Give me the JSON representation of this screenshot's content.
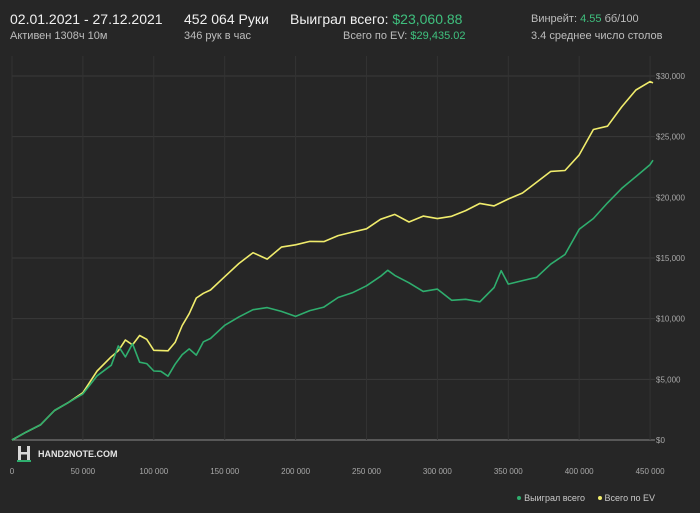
{
  "header": {
    "date_range": "02.01.2021 - 27.12.2021",
    "active_time": "Активен 1308ч 10м",
    "hands": "452 064 Руки",
    "hands_per_hour": "346 рук в час",
    "won_total_label": "Выиграл всего:",
    "won_total_value": "$23,060.88",
    "ev_total_label": "Всего по EV:",
    "ev_total_value": "$29,435.02",
    "winrate_label": "Винрейт:",
    "winrate_value": "4.55",
    "winrate_unit": "бб/100",
    "tables_avg": "3.4 среднее число столов"
  },
  "logo": {
    "text": "HAND2NOTE.COM"
  },
  "colors": {
    "won": "#2fae6e",
    "ev": "#f0ec6c",
    "bg": "#262626",
    "grid": "#3a3a3a"
  },
  "chart_data": {
    "type": "line",
    "xlim": [
      0,
      452064
    ],
    "ylim": [
      0,
      30000
    ],
    "x_ticks": [
      0,
      50000,
      100000,
      150000,
      200000,
      250000,
      300000,
      350000,
      400000,
      450000
    ],
    "x_tick_labels": [
      "0",
      "50 000",
      "100 000",
      "150 000",
      "200 000",
      "250 000",
      "300 000",
      "350 000",
      "400 000",
      "450 000"
    ],
    "y_ticks": [
      0,
      5000,
      10000,
      15000,
      20000,
      25000,
      30000
    ],
    "y_tick_labels": [
      "$0",
      "$5,000",
      "$10,000",
      "$15,000",
      "$20,000",
      "$25,000",
      "$30,000"
    ],
    "legend_position": "bottom-right",
    "series": [
      {
        "name": "Выиграл всего",
        "color": "#2fae6e",
        "x": [
          0,
          10000,
          20000,
          30000,
          40000,
          50000,
          60000,
          70000,
          75000,
          80000,
          85000,
          90000,
          95000,
          100000,
          105000,
          110000,
          115000,
          120000,
          125000,
          130000,
          135000,
          140000,
          150000,
          160000,
          170000,
          180000,
          190000,
          200000,
          210000,
          220000,
          230000,
          240000,
          250000,
          260000,
          265000,
          270000,
          280000,
          290000,
          300000,
          310000,
          320000,
          330000,
          340000,
          345000,
          350000,
          360000,
          370000,
          380000,
          390000,
          400000,
          410000,
          420000,
          430000,
          440000,
          450000,
          452064
        ],
        "y": [
          0,
          700,
          1200,
          2300,
          3200,
          3800,
          5200,
          6300,
          7800,
          6800,
          7800,
          6500,
          6300,
          5600,
          5800,
          5300,
          6200,
          6900,
          7600,
          7000,
          8000,
          8500,
          9500,
          10100,
          10600,
          11000,
          10600,
          10100,
          10800,
          11000,
          11700,
          12000,
          12800,
          13500,
          13900,
          13700,
          13000,
          12200,
          12300,
          11600,
          11600,
          11300,
          12700,
          14000,
          12800,
          13000,
          13500,
          14500,
          15200,
          17500,
          18300,
          19500,
          20600,
          21800,
          22700,
          23060
        ]
      },
      {
        "name": "Всего по EV",
        "color": "#f0ec6c",
        "x": [
          0,
          10000,
          20000,
          30000,
          40000,
          50000,
          60000,
          70000,
          75000,
          80000,
          85000,
          90000,
          95000,
          100000,
          105000,
          110000,
          115000,
          120000,
          125000,
          130000,
          135000,
          140000,
          150000,
          160000,
          170000,
          180000,
          190000,
          200000,
          210000,
          220000,
          230000,
          240000,
          250000,
          260000,
          270000,
          280000,
          290000,
          300000,
          310000,
          320000,
          330000,
          340000,
          350000,
          360000,
          370000,
          380000,
          390000,
          400000,
          410000,
          420000,
          430000,
          440000,
          450000,
          452064
        ],
        "y": [
          0,
          700,
          1200,
          2300,
          3200,
          3900,
          5600,
          7000,
          7400,
          8200,
          7700,
          8700,
          8300,
          7300,
          7500,
          7400,
          8000,
          9300,
          10500,
          11700,
          12000,
          12500,
          13500,
          14500,
          15300,
          15000,
          15900,
          16000,
          16500,
          16400,
          16800,
          17000,
          17500,
          18200,
          18500,
          18100,
          18500,
          18200,
          18300,
          19000,
          19500,
          19200,
          20000,
          20400,
          21200,
          22000,
          22300,
          23500,
          25500,
          26000,
          27500,
          28800,
          29400,
          29435
        ]
      }
    ]
  }
}
